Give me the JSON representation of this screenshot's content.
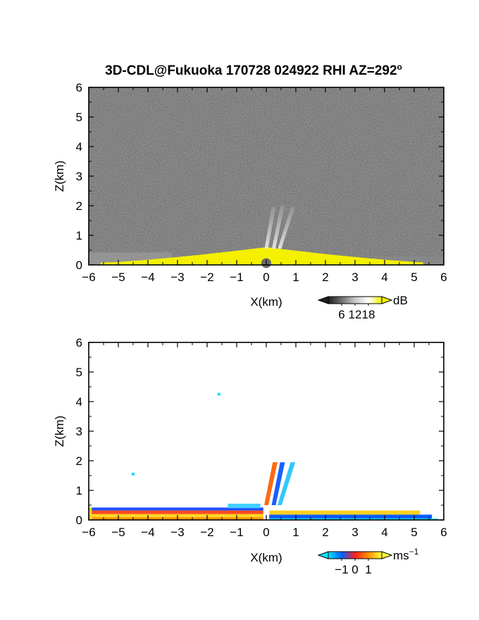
{
  "chart_data": [
    {
      "type": "heatmap",
      "title": "3D-CDL@Fukuoka 170728 024922 RHI AZ=292",
      "title_superscript": "o",
      "xlabel": "X(km)",
      "ylabel": "Z(km)",
      "xlim": [
        -6,
        6
      ],
      "ylim": [
        0,
        6
      ],
      "x_ticks": [
        "-6",
        "-5",
        "-4",
        "-3",
        "-2",
        "-1",
        "0",
        "1",
        "2",
        "3",
        "4",
        "5",
        "6"
      ],
      "y_ticks": [
        "0",
        "1",
        "2",
        "3",
        "4",
        "5",
        "6"
      ],
      "quantity": "SNR",
      "background": "dark gray noise",
      "features": [
        {
          "kind": "surface echo layer",
          "color": "yellow",
          "x": [
            -5.6,
            5.3
          ],
          "z_top_max": 0.6
        },
        {
          "kind": "gray beams above site",
          "x": [
            0.0,
            0.9
          ],
          "z": [
            0.5,
            2.0
          ]
        }
      ],
      "colorbar": {
        "unit": "dB",
        "ticks": [
          "6",
          "12",
          "18"
        ],
        "colors": [
          "#1e1e1e",
          "#707070",
          "#c8c8c8",
          "#ffffff",
          "#f0f000"
        ]
      }
    },
    {
      "type": "heatmap",
      "title": "",
      "xlabel": "X(km)",
      "ylabel": "Z(km)",
      "xlim": [
        -6,
        6
      ],
      "ylim": [
        0,
        6
      ],
      "x_ticks": [
        "-6",
        "-5",
        "-4",
        "-3",
        "-2",
        "-1",
        "0",
        "1",
        "2",
        "3",
        "4",
        "5",
        "6"
      ],
      "y_ticks": [
        "0",
        "1",
        "2",
        "3",
        "4",
        "5",
        "6"
      ],
      "quantity": "radial velocity",
      "background": "white",
      "features": [
        {
          "kind": "near-surface layer",
          "x": [
            -6.0,
            5.6
          ],
          "z": [
            0.0,
            0.45
          ]
        },
        {
          "kind": "isolated pixel",
          "x": -4.5,
          "z": 1.55,
          "color": "cyan"
        },
        {
          "kind": "isolated pixel",
          "x": -1.6,
          "z": 4.25,
          "color": "cyan"
        },
        {
          "kind": "beams above site",
          "x": [
            0.0,
            0.9
          ],
          "z": [
            0.5,
            1.95
          ]
        }
      ],
      "colorbar": {
        "unit": "ms",
        "unit_superscript": "−1",
        "ticks": [
          "−1",
          "0",
          "1"
        ],
        "colors": [
          "#00e8ff",
          "#0060ff",
          "#ff2020",
          "#ff9000",
          "#ffff40"
        ]
      }
    }
  ]
}
